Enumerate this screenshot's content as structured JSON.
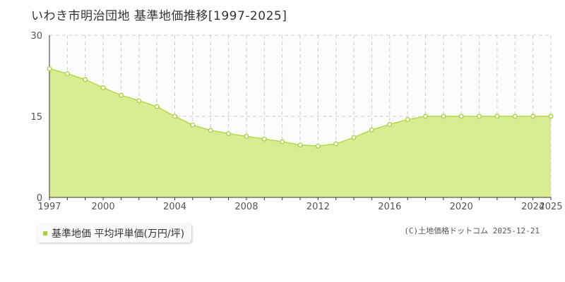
{
  "chart_data": {
    "type": "area",
    "title": "いわき市明治団地 基準地価推移[1997-2025]",
    "series": [
      {
        "name": "基準地価 平均坪単価(万円/坪)",
        "x": [
          1997,
          1998,
          1999,
          2000,
          2001,
          2002,
          2003,
          2004,
          2005,
          2006,
          2007,
          2008,
          2009,
          2010,
          2011,
          2012,
          2013,
          2014,
          2015,
          2016,
          2017,
          2018,
          2019,
          2020,
          2021,
          2022,
          2023,
          2024,
          2025
        ],
        "values": [
          23.8,
          22.9,
          21.8,
          20.3,
          18.9,
          17.9,
          16.8,
          15.0,
          13.4,
          12.4,
          11.8,
          11.3,
          10.8,
          10.3,
          9.7,
          9.5,
          9.9,
          11.1,
          12.5,
          13.5,
          14.4,
          15.0,
          15.0,
          15.0,
          15.0,
          15.0,
          15.0,
          15.0,
          15.0
        ]
      }
    ],
    "xlabel": "",
    "ylabel": "",
    "xlim": [
      1997,
      2025
    ],
    "ylim": [
      0,
      30
    ],
    "yticks": [
      "0",
      "15",
      "30"
    ],
    "xticks": [
      "1997",
      "2000",
      "2004",
      "2008",
      "2012",
      "2016",
      "2020",
      "2024",
      "2025"
    ],
    "grid": true,
    "legend_position": "bottom-left",
    "colors": {
      "fill": "#d9ec93",
      "line": "#b4d94a",
      "point_stroke": "#a9cf3f",
      "grid": "#cccccc"
    }
  },
  "legend": {
    "label": "基準地価 平均坪単価(万円/坪)"
  },
  "copyright": "(C)土地価格ドットコム 2025-12-21"
}
